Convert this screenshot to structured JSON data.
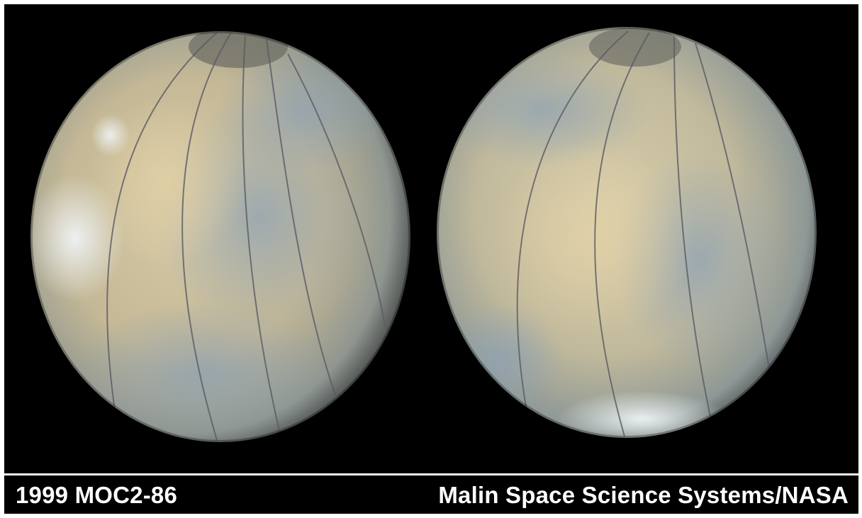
{
  "caption": {
    "left": "1999 MOC2-86",
    "right": "Malin Space Science Systems/NASA"
  },
  "image": {
    "subject": "two views of the planet Mars with longitude grid lines",
    "colors": {
      "background": "#000000",
      "planet_tan": "#cdbf9a",
      "planet_blue": "#8fa3b0",
      "cloud_white": "#e6ecef",
      "grid_line": "#5b5b66",
      "caption_text": "#ffffff",
      "rule": "#f2f2f2"
    }
  }
}
